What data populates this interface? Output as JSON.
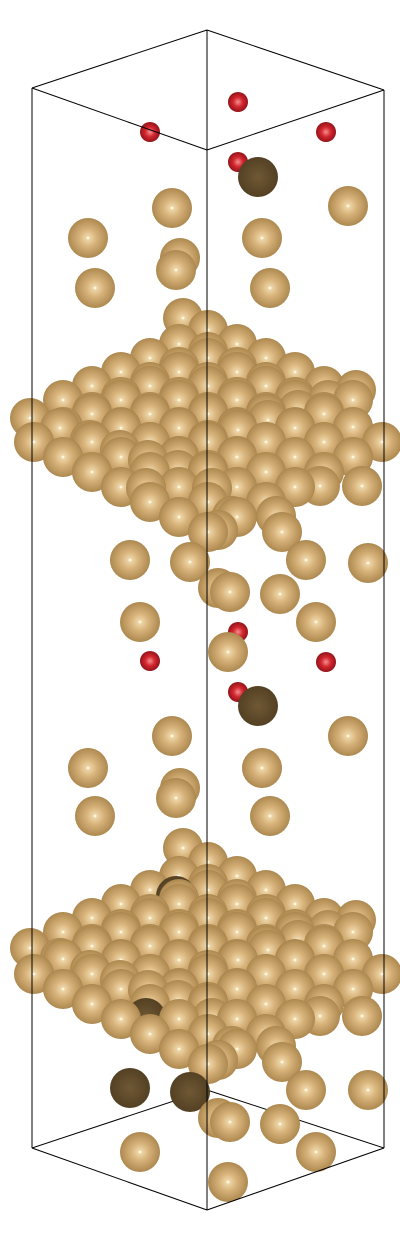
{
  "colors": {
    "background": "#ffffff",
    "box_edge": "#000000",
    "gold_base": "#c9a46c",
    "gold_highlight": "#f4dfb4",
    "gold_shadow": "#6b5430",
    "oxygen_base": "#c8202a",
    "oxygen_highlight": "#f08080",
    "oxygen_shadow": "#6a0a10"
  },
  "atom_types": [
    "gold-atom",
    "oxygen-atom"
  ]
}
